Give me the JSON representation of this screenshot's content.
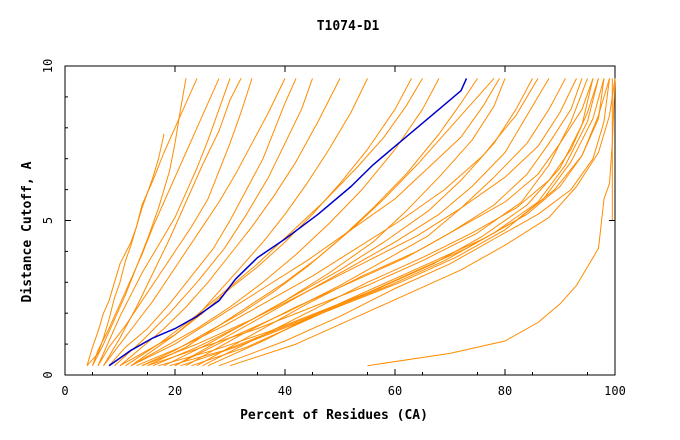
{
  "chart_data": {
    "type": "line",
    "title": "T1074-D1",
    "xlabel": "Percent of Residues (CA)",
    "ylabel": "Distance Cutoff, A",
    "xlim": [
      0,
      100
    ],
    "ylim": [
      0,
      10
    ],
    "xticks": [
      0,
      20,
      40,
      60,
      80,
      100
    ],
    "yticks": [
      0,
      5,
      10
    ],
    "grid": false,
    "legend": "none",
    "colors": {
      "highlight": "#0000cc",
      "others": "#ff8c00"
    },
    "highlight_series": {
      "x": [
        8,
        12,
        16,
        20,
        24,
        28,
        31,
        35,
        40,
        46,
        52,
        56,
        60,
        64,
        68,
        72,
        73
      ],
      "y": [
        0.3,
        0.8,
        1.2,
        1.5,
        1.9,
        2.4,
        3.1,
        3.8,
        4.4,
        5.2,
        6.1,
        6.8,
        7.4,
        8.0,
        8.6,
        9.2,
        9.6
      ]
    },
    "other_series": [
      {
        "x": [
          4,
          5,
          6,
          7,
          8,
          9,
          10,
          12,
          13,
          14,
          16,
          18,
          20,
          22,
          24
        ],
        "y": [
          0.3,
          0.9,
          1.4,
          2.0,
          2.4,
          3.0,
          3.6,
          4.3,
          4.8,
          5.5,
          6.3,
          7.2,
          8.0,
          8.8,
          9.6
        ]
      },
      {
        "x": [
          4,
          6,
          7,
          8,
          9,
          10,
          11,
          12,
          13,
          14,
          16,
          17,
          18
        ],
        "y": [
          0.3,
          0.7,
          1.2,
          1.8,
          2.5,
          3.0,
          3.7,
          4.2,
          4.8,
          5.4,
          6.4,
          7.0,
          7.8
        ]
      },
      {
        "x": [
          5,
          6,
          8,
          10,
          12,
          14,
          16,
          18,
          20,
          22,
          24,
          26,
          28
        ],
        "y": [
          0.3,
          0.8,
          1.5,
          2.3,
          3.1,
          3.9,
          4.8,
          5.6,
          6.4,
          7.2,
          8.0,
          8.8,
          9.6
        ]
      },
      {
        "x": [
          5,
          7,
          9,
          11,
          13,
          15,
          17,
          19,
          20,
          21,
          22
        ],
        "y": [
          0.3,
          1.0,
          1.8,
          2.6,
          3.5,
          4.4,
          5.4,
          6.6,
          7.5,
          8.6,
          9.6
        ]
      },
      {
        "x": [
          6,
          8,
          10,
          12,
          14,
          17,
          20,
          22,
          24,
          26,
          28,
          30
        ],
        "y": [
          0.3,
          1.1,
          1.9,
          2.6,
          3.3,
          4.2,
          5.1,
          5.9,
          6.7,
          7.6,
          8.6,
          9.6
        ]
      },
      {
        "x": [
          6,
          8,
          11,
          14,
          17,
          20,
          23,
          26,
          28,
          30,
          32,
          34
        ],
        "y": [
          0.3,
          0.9,
          1.6,
          2.4,
          3.2,
          4.0,
          4.8,
          5.7,
          6.6,
          7.5,
          8.5,
          9.6
        ]
      },
      {
        "x": [
          7,
          10,
          13,
          16,
          19,
          22,
          25,
          28,
          31,
          34,
          37,
          40
        ],
        "y": [
          0.3,
          1.0,
          1.7,
          2.4,
          3.2,
          4.0,
          4.8,
          5.6,
          6.5,
          7.5,
          8.5,
          9.6
        ]
      },
      {
        "x": [
          8,
          11,
          15,
          19,
          23,
          27,
          30,
          33,
          36,
          38,
          40,
          42
        ],
        "y": [
          0.3,
          0.9,
          1.5,
          2.3,
          3.2,
          4.1,
          5.0,
          6.0,
          7.0,
          7.9,
          8.8,
          9.6
        ]
      },
      {
        "x": [
          10,
          14,
          18,
          22,
          26,
          30,
          34,
          38,
          42,
          46,
          50
        ],
        "y": [
          0.3,
          0.9,
          1.5,
          2.2,
          3.0,
          3.9,
          4.8,
          5.8,
          6.9,
          8.2,
          9.6
        ]
      },
      {
        "x": [
          12,
          16,
          20,
          24,
          28,
          32,
          36,
          40,
          44,
          48,
          52,
          55
        ],
        "y": [
          0.3,
          0.8,
          1.3,
          1.9,
          2.7,
          3.5,
          4.3,
          5.2,
          6.2,
          7.3,
          8.5,
          9.6
        ]
      },
      {
        "x": [
          10,
          15,
          20,
          25,
          30,
          35,
          40,
          45,
          50,
          55,
          60,
          63
        ],
        "y": [
          0.3,
          0.8,
          1.3,
          2.0,
          2.8,
          3.5,
          4.3,
          5.2,
          6.2,
          7.3,
          8.6,
          9.6
        ]
      },
      {
        "x": [
          12,
          18,
          24,
          30,
          36,
          42,
          48,
          54,
          60,
          65,
          68
        ],
        "y": [
          0.3,
          0.9,
          1.5,
          2.2,
          3.0,
          3.9,
          4.9,
          6.0,
          7.3,
          8.6,
          9.6
        ]
      },
      {
        "x": [
          14,
          20,
          26,
          32,
          38,
          44,
          50,
          56,
          62,
          68,
          72,
          75
        ],
        "y": [
          0.3,
          0.8,
          1.4,
          2.0,
          2.7,
          3.5,
          4.4,
          5.4,
          6.5,
          7.8,
          8.8,
          9.6
        ]
      },
      {
        "x": [
          15,
          22,
          28,
          34,
          40,
          46,
          52,
          58,
          64,
          70,
          75,
          78
        ],
        "y": [
          0.3,
          0.9,
          1.6,
          2.3,
          3.0,
          3.8,
          4.7,
          5.7,
          6.8,
          8.0,
          9.0,
          9.6
        ]
      },
      {
        "x": [
          16,
          24,
          32,
          40,
          48,
          56,
          62,
          68,
          74,
          78,
          80
        ],
        "y": [
          0.3,
          0.9,
          1.6,
          2.4,
          3.3,
          4.3,
          5.3,
          6.4,
          7.6,
          8.7,
          9.6
        ]
      },
      {
        "x": [
          18,
          26,
          34,
          42,
          50,
          58,
          66,
          72,
          78,
          82,
          85
        ],
        "y": [
          0.3,
          1.0,
          1.8,
          2.6,
          3.4,
          4.3,
          5.3,
          6.3,
          7.5,
          8.6,
          9.6
        ]
      },
      {
        "x": [
          20,
          28,
          36,
          44,
          52,
          60,
          68,
          74,
          80,
          84,
          88
        ],
        "y": [
          0.3,
          1.1,
          1.9,
          2.7,
          3.5,
          4.3,
          5.2,
          6.1,
          7.2,
          8.4,
          9.6
        ]
      },
      {
        "x": [
          20,
          30,
          40,
          50,
          58,
          66,
          72,
          78,
          84,
          88,
          91
        ],
        "y": [
          0.3,
          1.2,
          2.0,
          2.9,
          3.7,
          4.5,
          5.4,
          6.4,
          7.5,
          8.6,
          9.6
        ]
      },
      {
        "x": [
          22,
          32,
          42,
          52,
          62,
          70,
          78,
          84,
          88,
          92,
          94
        ],
        "y": [
          0.3,
          1.3,
          2.2,
          3.0,
          3.8,
          4.6,
          5.5,
          6.5,
          7.5,
          8.6,
          9.6
        ]
      },
      {
        "x": [
          24,
          34,
          44,
          54,
          64,
          72,
          80,
          86,
          90,
          94,
          96
        ],
        "y": [
          0.3,
          1.3,
          2.3,
          3.2,
          4.0,
          4.8,
          5.6,
          6.5,
          7.5,
          8.6,
          9.6
        ]
      },
      {
        "x": [
          25,
          35,
          45,
          55,
          65,
          74,
          82,
          88,
          92,
          95,
          97
        ],
        "y": [
          0.3,
          1.2,
          2.1,
          3.0,
          3.8,
          4.6,
          5.4,
          6.3,
          7.3,
          8.5,
          9.6
        ]
      },
      {
        "x": [
          26,
          36,
          46,
          56,
          66,
          76,
          84,
          90,
          94,
          97,
          98
        ],
        "y": [
          0.3,
          1.1,
          2.0,
          2.8,
          3.6,
          4.4,
          5.2,
          6.1,
          7.1,
          8.3,
          9.6
        ]
      },
      {
        "x": [
          28,
          40,
          50,
          60,
          70,
          78,
          86,
          92,
          96,
          98,
          99
        ],
        "y": [
          0.3,
          1.1,
          1.9,
          2.8,
          3.6,
          4.4,
          5.2,
          6.0,
          7.0,
          8.2,
          9.6
        ]
      },
      {
        "x": [
          14,
          24,
          34,
          44,
          54,
          64,
          72,
          80,
          86,
          90,
          93
        ],
        "y": [
          0.3,
          1.0,
          1.8,
          2.7,
          3.6,
          4.5,
          5.4,
          6.4,
          7.4,
          8.5,
          9.6
        ]
      },
      {
        "x": [
          12,
          20,
          28,
          36,
          44,
          52,
          60,
          66,
          72,
          76,
          79
        ],
        "y": [
          0.3,
          1.0,
          1.9,
          2.8,
          3.7,
          4.7,
          5.7,
          6.7,
          7.7,
          8.7,
          9.6
        ]
      },
      {
        "x": [
          11,
          17,
          23,
          29,
          35,
          41,
          47,
          53,
          58,
          62,
          65
        ],
        "y": [
          0.3,
          1.0,
          1.8,
          2.7,
          3.6,
          4.6,
          5.6,
          6.7,
          7.7,
          8.7,
          9.6
        ]
      },
      {
        "x": [
          9,
          14,
          19,
          24,
          29,
          33,
          37,
          40,
          43,
          45
        ],
        "y": [
          0.3,
          1.1,
          2.0,
          3.0,
          4.1,
          5.2,
          6.4,
          7.5,
          8.6,
          9.6
        ]
      },
      {
        "x": [
          7,
          10,
          13,
          16,
          19,
          22,
          25,
          28,
          30,
          32
        ],
        "y": [
          0.3,
          1.2,
          2.2,
          3.3,
          4.4,
          5.6,
          6.8,
          7.9,
          8.9,
          9.6
        ]
      },
      {
        "x": [
          15,
          25,
          35,
          45,
          55,
          65,
          75,
          83,
          88,
          92,
          95
        ],
        "y": [
          0.3,
          0.9,
          1.5,
          2.2,
          2.9,
          3.7,
          4.6,
          5.6,
          6.8,
          8.2,
          9.6
        ]
      },
      {
        "x": [
          17,
          27,
          37,
          47,
          57,
          67,
          76,
          84,
          90,
          94,
          96
        ],
        "y": [
          0.3,
          0.8,
          1.4,
          2.1,
          2.8,
          3.6,
          4.5,
          5.5,
          6.7,
          8.1,
          9.6
        ]
      },
      {
        "x": [
          19,
          29,
          39,
          49,
          59,
          69,
          78,
          86,
          91,
          95,
          97
        ],
        "y": [
          0.3,
          0.8,
          1.5,
          2.2,
          2.9,
          3.7,
          4.6,
          5.6,
          6.8,
          8.2,
          9.6
        ]
      },
      {
        "x": [
          21,
          31,
          41,
          51,
          61,
          71,
          80,
          87,
          92,
          96,
          98
        ],
        "y": [
          0.3,
          0.9,
          1.6,
          2.3,
          3.0,
          3.8,
          4.7,
          5.7,
          6.9,
          8.3,
          9.6
        ]
      },
      {
        "x": [
          23,
          33,
          43,
          53,
          63,
          73,
          82,
          89,
          94,
          97,
          99
        ],
        "y": [
          0.3,
          0.9,
          1.7,
          2.5,
          3.3,
          4.1,
          5.0,
          6.0,
          7.1,
          8.4,
          9.6
        ]
      },
      {
        "x": [
          13,
          21,
          29,
          37,
          45,
          53,
          61,
          69,
          76,
          82,
          86
        ],
        "y": [
          0.3,
          0.9,
          1.6,
          2.4,
          3.2,
          4.1,
          5.0,
          6.0,
          7.1,
          8.4,
          9.6
        ]
      },
      {
        "x": [
          30,
          42,
          52,
          62,
          72,
          80,
          88,
          93,
          97,
          99,
          100
        ],
        "y": [
          0.3,
          1.0,
          1.8,
          2.6,
          3.4,
          4.2,
          5.1,
          6.1,
          7.2,
          8.4,
          9.6
        ]
      },
      {
        "x": [
          55,
          70,
          80,
          86,
          90,
          93,
          95,
          97,
          98,
          99,
          99.5,
          100
        ],
        "y": [
          0.3,
          0.7,
          1.1,
          1.7,
          2.3,
          2.9,
          3.5,
          4.1,
          5.7,
          6.2,
          7.5,
          9.6
        ]
      },
      {
        "x": [
          99.5,
          99.5,
          99.5,
          99.5,
          99.5
        ],
        "y": [
          5.0,
          6.5,
          7.8,
          8.8,
          9.6
        ]
      }
    ]
  }
}
